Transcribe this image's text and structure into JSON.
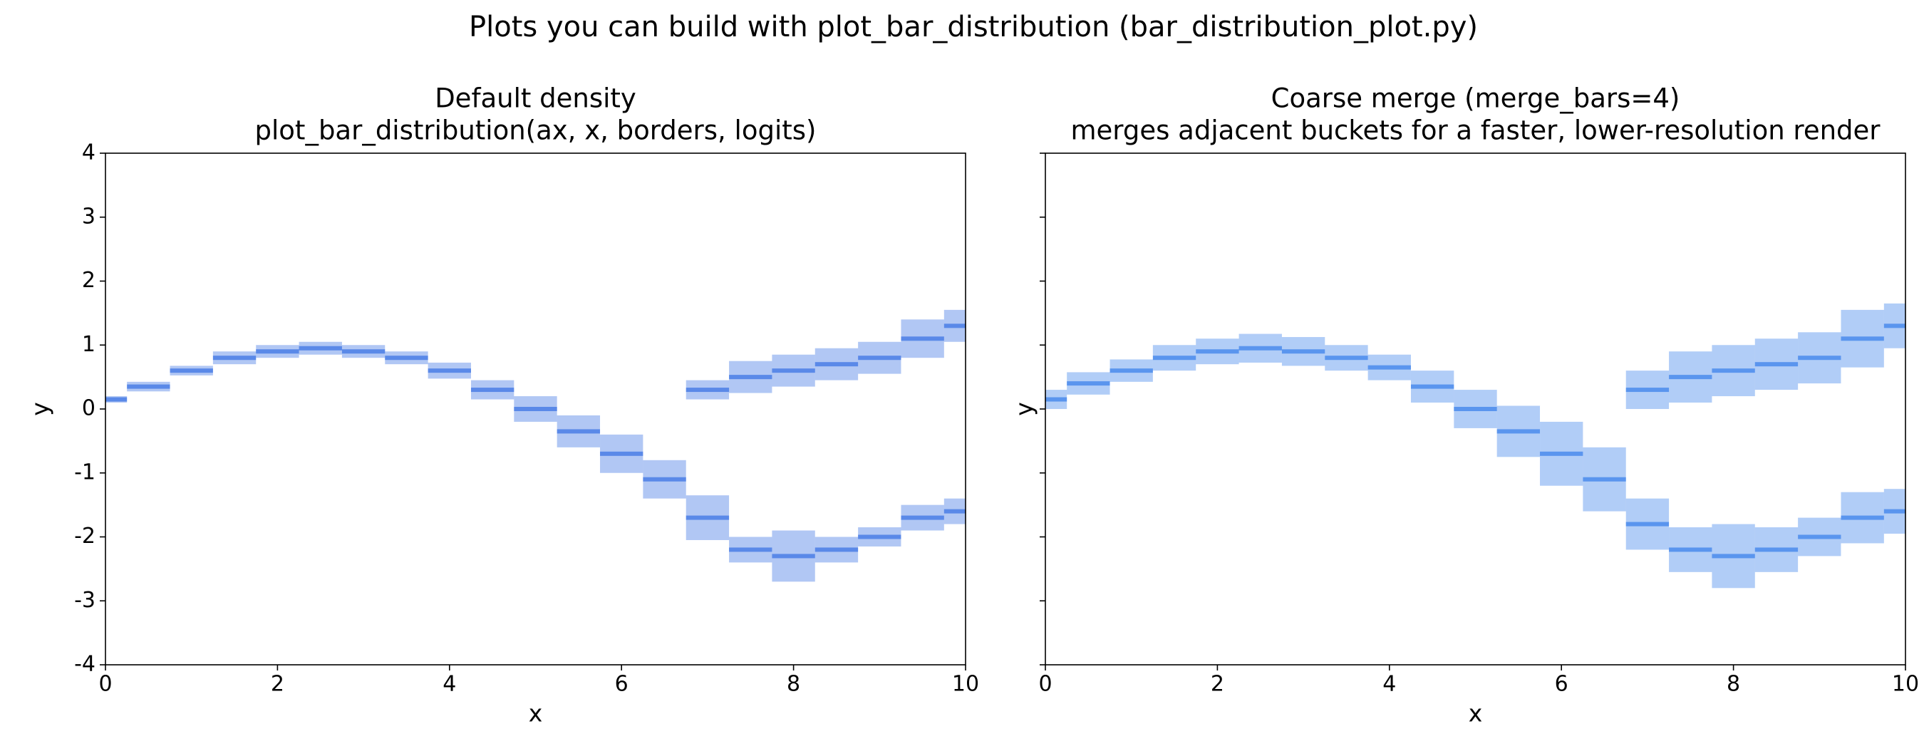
{
  "title": "Plots you can build with plot_bar_distribution (bar_distribution_plot.py)",
  "chart_data": [
    {
      "type": "density",
      "title": "Default density",
      "subtitle": "plot_bar_distribution(ax, x, borders, logits)",
      "xlabel": "x",
      "ylabel": "y",
      "xlim": [
        0,
        10
      ],
      "ylim": [
        -4,
        4
      ],
      "xticks": [
        0,
        2,
        4,
        6,
        8,
        10
      ],
      "yticks": [
        -4,
        -3,
        -2,
        -1,
        0,
        1,
        2,
        3,
        4
      ],
      "show_ytick_labels": true,
      "series": [
        {
          "color": "#1f5fe0",
          "x": [
            0,
            0.5,
            1,
            1.5,
            2,
            2.5,
            3,
            3.5,
            4,
            4.5,
            5,
            5.5,
            6,
            6.5,
            7,
            7.5,
            8,
            8.5,
            9,
            9.5,
            10
          ],
          "values": [
            0.15,
            0.35,
            0.6,
            0.8,
            0.9,
            0.95,
            0.9,
            0.8,
            0.6,
            0.3,
            0,
            -0.35,
            -0.7,
            -1.1,
            -1.7,
            -2.2,
            -2.3,
            -2.2,
            -2.0,
            -1.7,
            -1.6
          ],
          "spread": [
            0.1,
            0.15,
            0.15,
            0.2,
            0.2,
            0.2,
            0.2,
            0.2,
            0.25,
            0.3,
            0.4,
            0.5,
            0.6,
            0.6,
            0.7,
            0.4,
            0.8,
            0.4,
            0.3,
            0.4,
            0.4
          ]
        },
        {
          "color": "#1f5fe0",
          "x": [
            7,
            7.5,
            8,
            8.5,
            9,
            9.5,
            10
          ],
          "values": [
            0.3,
            0.5,
            0.6,
            0.7,
            0.8,
            1.1,
            1.3
          ],
          "spread": [
            0.3,
            0.5,
            0.5,
            0.5,
            0.5,
            0.6,
            0.5
          ]
        }
      ]
    },
    {
      "type": "density",
      "title": "Coarse merge (merge_bars=4)",
      "subtitle": "merges adjacent buckets for a faster, lower-resolution render",
      "xlabel": "x",
      "ylabel": "y",
      "xlim": [
        0,
        10
      ],
      "ylim": [
        -4,
        4
      ],
      "xticks": [
        0,
        2,
        4,
        6,
        8,
        10
      ],
      "yticks": [
        -4,
        -3,
        -2,
        -1,
        0,
        1,
        2,
        3,
        4
      ],
      "show_ytick_labels": false,
      "series": [
        {
          "color": "#1f6fe8",
          "x": [
            0,
            0.5,
            1,
            1.5,
            2,
            2.5,
            3,
            3.5,
            4,
            4.5,
            5,
            5.5,
            6,
            6.5,
            7,
            7.5,
            8,
            8.5,
            9,
            9.5,
            10
          ],
          "values": [
            0.15,
            0.4,
            0.6,
            0.8,
            0.9,
            0.95,
            0.9,
            0.8,
            0.65,
            0.35,
            0,
            -0.35,
            -0.7,
            -1.1,
            -1.8,
            -2.2,
            -2.3,
            -2.2,
            -2.0,
            -1.7,
            -1.6
          ],
          "spread": [
            0.3,
            0.35,
            0.35,
            0.4,
            0.4,
            0.45,
            0.45,
            0.4,
            0.4,
            0.5,
            0.6,
            0.8,
            1.0,
            1.0,
            0.8,
            0.7,
            1.0,
            0.7,
            0.6,
            0.8,
            0.7
          ]
        },
        {
          "color": "#1f6fe8",
          "x": [
            7,
            7.5,
            8,
            8.5,
            9,
            9.5,
            10
          ],
          "values": [
            0.3,
            0.5,
            0.6,
            0.7,
            0.8,
            1.1,
            1.3
          ],
          "spread": [
            0.6,
            0.8,
            0.8,
            0.8,
            0.8,
            0.9,
            0.7
          ]
        }
      ]
    }
  ]
}
